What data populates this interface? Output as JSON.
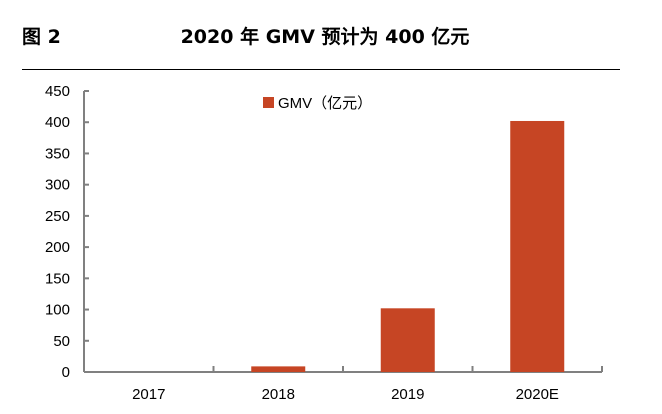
{
  "figure_label": "图 2",
  "chart_data": {
    "type": "bar",
    "title": "2020 年 GMV 预计为 400 亿元",
    "categories": [
      "2017",
      "2018",
      "2019",
      "2020E"
    ],
    "series": [
      {
        "name": "GMV（亿元）",
        "values": [
          0,
          9,
          102,
          402
        ],
        "color": "#c64524"
      }
    ],
    "ylim": [
      0,
      450
    ],
    "yticks": [
      0,
      50,
      100,
      150,
      200,
      250,
      300,
      350,
      400,
      450
    ],
    "xlabel": "",
    "ylabel": "",
    "grid": false,
    "legend": "top-center"
  }
}
